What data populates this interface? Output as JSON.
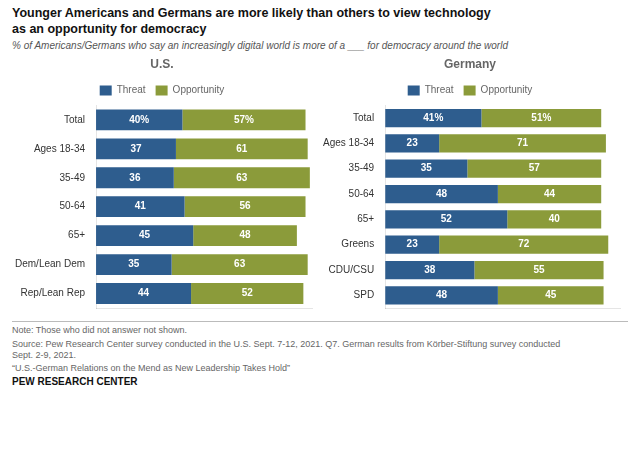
{
  "title": "Younger Americans and Germans are more likely than others to view technology\nas an opportunity for democracy",
  "subtitle": "% of Americans/Germans who say an increasingly digital world is more of a ___ for democracy around the world",
  "annotations": [
    "Note: Those who did not answer not shown.",
    "Source: Pew Research Center survey conducted in the U.S. Sept. 7-12, 2021. Q7. German results from Körber-Stiftung survey conducted\nSept. 2-9, 2021.",
    "“U.S.-German Relations on the Mend as New Leadership Takes Hold”",
    "PEW RESEARCH CENTER"
  ],
  "chart_data": [
    {
      "type": "bar",
      "title": "U.S.",
      "orientation": "horizontal",
      "stacked": true,
      "data_labels": true,
      "legend": "top",
      "grid": false,
      "tick_labels": "y",
      "xlim": [
        0,
        100
      ],
      "categories": [
        "Total",
        "Ages 18-34",
        "35-49",
        "50-64",
        "65+",
        "Dem/Lean Dem",
        "Rep/Lean Rep"
      ],
      "series": [
        {
          "name": "Threat",
          "color": "#2e5d8e",
          "values": [
            40,
            37,
            36,
            41,
            45,
            35,
            44
          ],
          "value_labels": [
            "40%",
            "37",
            "36",
            "41",
            "45",
            "35",
            "44"
          ]
        },
        {
          "name": "Opportunity",
          "color": "#8b9b3a",
          "values": [
            57,
            61,
            63,
            56,
            48,
            63,
            52
          ],
          "value_labels": [
            "57%",
            "61",
            "63",
            "56",
            "48",
            "63",
            "52"
          ]
        }
      ]
    },
    {
      "type": "bar",
      "title": "Germany",
      "orientation": "horizontal",
      "stacked": true,
      "data_labels": true,
      "legend": "top",
      "grid": false,
      "tick_labels": "y",
      "xlim": [
        0,
        100
      ],
      "categories": [
        "Total",
        "Ages 18-34",
        "35-49",
        "50-64",
        "65+",
        "Greens",
        "CDU/CSU",
        "SPD"
      ],
      "series": [
        {
          "name": "Threat",
          "color": "#2e5d8e",
          "values": [
            41,
            23,
            35,
            48,
            52,
            23,
            38,
            48
          ],
          "value_labels": [
            "41%",
            "23",
            "35",
            "48",
            "52",
            "23",
            "38",
            "48"
          ]
        },
        {
          "name": "Opportunity",
          "color": "#8b9b3a",
          "values": [
            51,
            71,
            57,
            44,
            40,
            72,
            55,
            45
          ],
          "value_labels": [
            "51%",
            "71",
            "57",
            "44",
            "40",
            "72",
            "55",
            "45"
          ]
        }
      ]
    }
  ]
}
